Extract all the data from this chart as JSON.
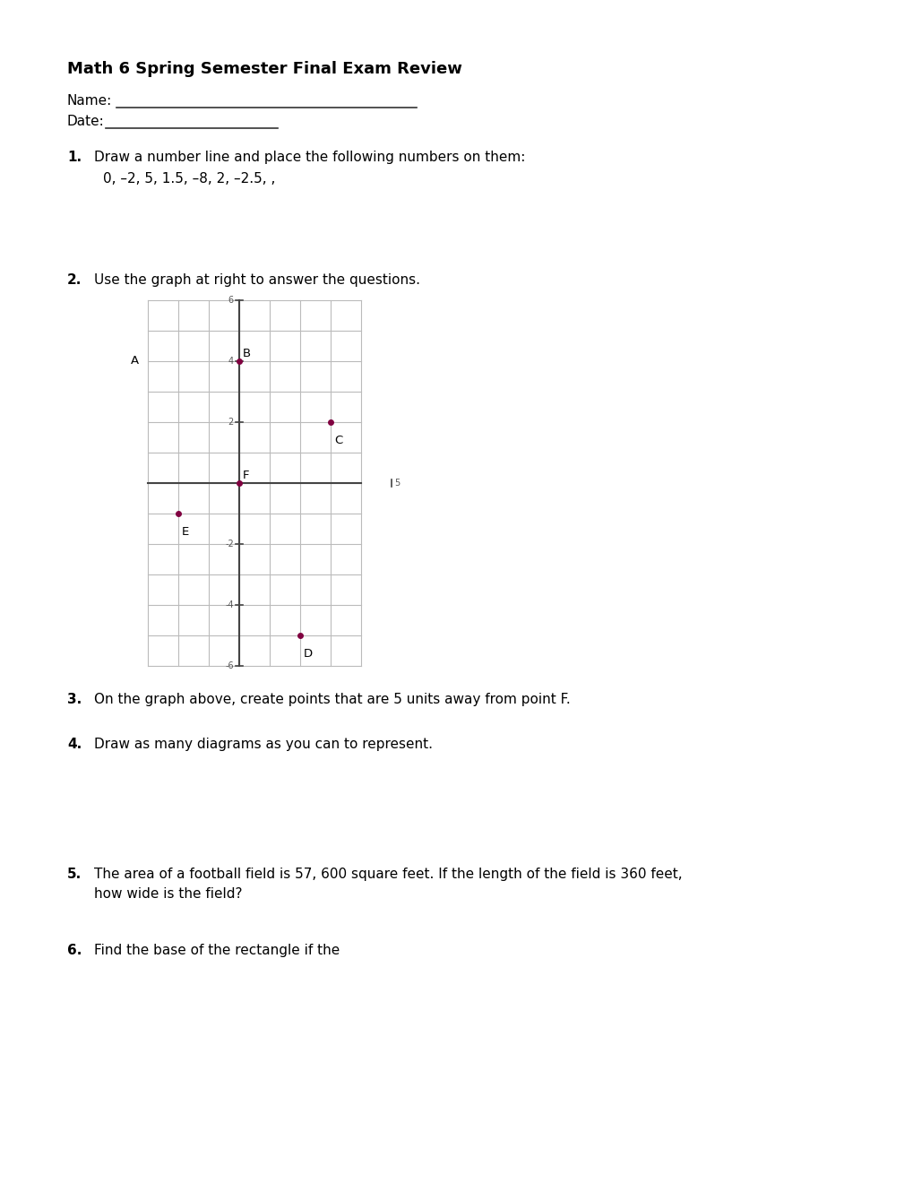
{
  "title": "Math 6 Spring Semester Final Exam Review",
  "name_label": "Name:",
  "date_label": "Date:",
  "q1_num": "1.",
  "q1_text": "Draw a number line and place the following numbers on them:",
  "q1_sub": "0, –2, 5, 1.5, –8, 2, –2.5, ,",
  "q2_num": "2.",
  "q2_text": "Use the graph at right to answer the questions.",
  "q3_num": "3.",
  "q3_text": "On the graph above, create points that are 5 units away from point F.",
  "q4_num": "4.",
  "q4_text": "Draw as many diagrams as you can to represent.",
  "q5_num": "5.",
  "q5_line1": "The area of a football field is 57, 600 square feet. If the length of the field is 360 feet,",
  "q5_line2": "how wide is the field?",
  "q6_num": "6.",
  "q6_text": "Find the base of the rectangle if the",
  "point_color": "#800040",
  "grid_color": "#BBBBBB",
  "axis_color": "#444444",
  "tick_label_color": "#555555",
  "bg_color": "#FFFFFF",
  "text_color": "#000000"
}
